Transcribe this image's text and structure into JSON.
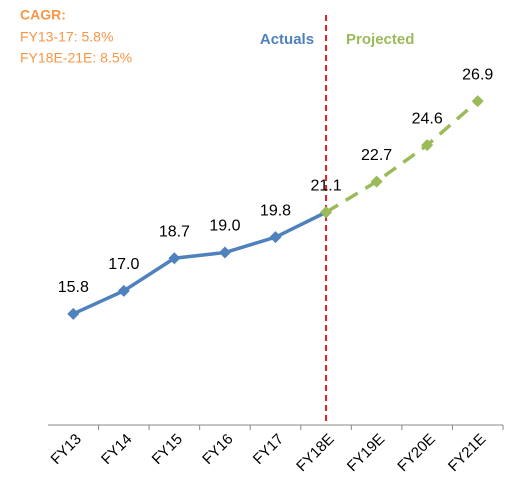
{
  "chart_data": {
    "type": "line",
    "annotations": {
      "title": "CAGR:",
      "lines": [
        "FY13-17: 5.8%",
        "FY18E-21E: 8.5%"
      ]
    },
    "categories": [
      "FY13",
      "FY14",
      "FY15",
      "FY16",
      "FY17",
      "FY18E",
      "FY19E",
      "FY20E",
      "FY21E"
    ],
    "series": [
      {
        "name": "Actuals",
        "color": "#4f81bd",
        "dashed": false,
        "values": [
          15.8,
          17.0,
          18.7,
          19.0,
          19.8,
          21.1,
          null,
          null,
          null
        ],
        "value_labels": [
          "15.8",
          "17.0",
          "18.7",
          "19.0",
          "19.8",
          "21.1",
          null,
          null,
          null
        ]
      },
      {
        "name": "Projected",
        "color": "#9bbb59",
        "dashed": true,
        "values": [
          null,
          null,
          null,
          null,
          null,
          21.1,
          22.7,
          24.6,
          26.9
        ],
        "value_labels": [
          null,
          null,
          null,
          null,
          null,
          null,
          "22.7",
          "24.6",
          "26.9"
        ]
      }
    ],
    "ylim": [
      10,
      28
    ],
    "divider_color": "#e02020"
  }
}
